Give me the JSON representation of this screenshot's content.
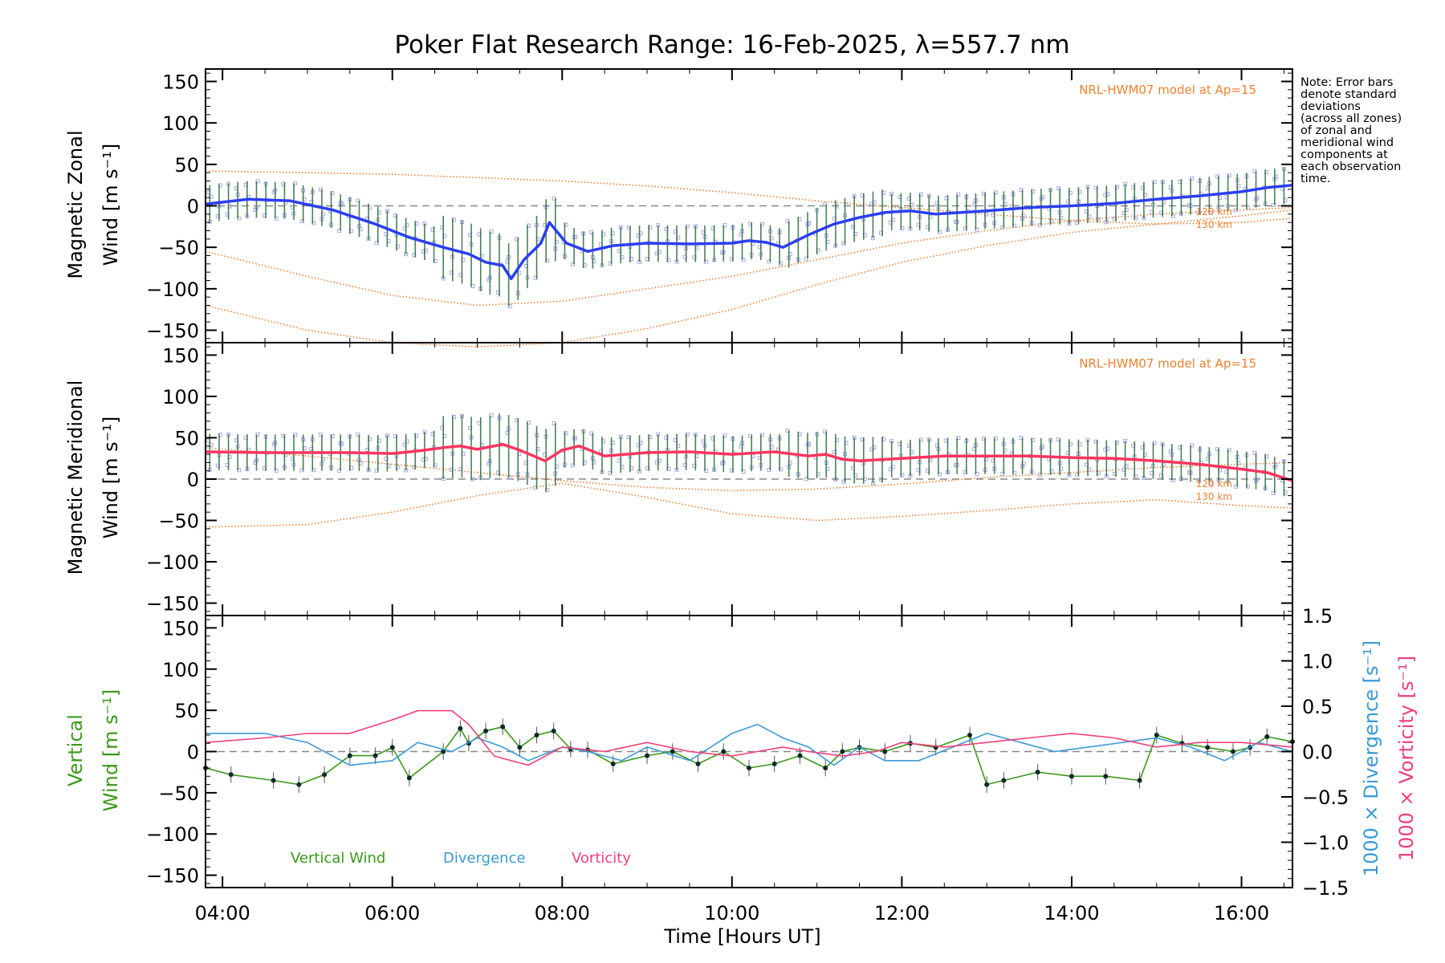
{
  "title": "Poker Flat Research Range: 16-Feb-2025, λ=557.7 nm",
  "note": [
    "Note: Error bars",
    "denote standard",
    "deviations",
    "(across all zones)",
    "of zonal and",
    "meridional wind",
    "components at",
    "each observation",
    "time."
  ],
  "model_label": "NRL-HWM07 model at Ap=15",
  "model_heights": [
    "120 km",
    "130 km"
  ],
  "xlabel": "Time [Hours UT]",
  "xticks": [
    "04:00",
    "06:00",
    "08:00",
    "10:00",
    "12:00",
    "14:00",
    "16:00"
  ],
  "yticks": [
    "150",
    "100",
    "50",
    "0",
    "−50",
    "−100",
    "−150"
  ],
  "right_ticks": [
    "1.5",
    "1.0",
    "0.5",
    "0.0",
    "−0.5",
    "−1.0",
    "−1.5"
  ],
  "panel_labels": {
    "zonal": [
      "Magnetic Zonal",
      "Wind [m s⁻¹]"
    ],
    "meridional": [
      "Magnetic Meridional",
      "Wind [m s⁻¹]"
    ],
    "vertical": [
      "Vertical",
      "Wind [m s⁻¹]"
    ],
    "divergence": "1000 × Divergence [s⁻¹]",
    "vorticity": "1000 × Vorticity [s⁻¹]"
  },
  "legend": [
    "Vertical Wind",
    "Divergence",
    "Vorticity"
  ],
  "colors": {
    "zonal": "#2a3ff0",
    "meridional": "#ff3560",
    "vertical": "#3a9a1a",
    "divergence": "#3a9ad8",
    "vorticity": "#f0407a",
    "model": "#f08030",
    "scatter": "#a8a8e8",
    "errorbar": "#2a6a3a"
  },
  "chart_data": [
    {
      "type": "line",
      "panel": "zonal",
      "xlim": [
        3.8,
        16.6
      ],
      "ylim": [
        -165,
        165
      ],
      "series": [
        {
          "x": [
            3.8,
            4.3,
            4.8,
            5.3,
            5.8,
            6.2,
            6.6,
            6.9,
            7.1,
            7.3,
            7.4,
            7.55,
            7.75,
            7.85,
            8.05,
            8.3,
            8.6,
            9.0,
            9.5,
            10.0,
            10.2,
            10.4,
            10.6,
            10.9,
            11.2,
            11.5,
            11.8,
            12.1,
            12.4,
            13.0,
            13.5,
            14.0,
            14.5,
            15.0,
            15.5,
            16.0,
            16.3,
            16.6
          ],
          "y": [
            2,
            8,
            6,
            -5,
            -22,
            -38,
            -50,
            -58,
            -68,
            -72,
            -88,
            -65,
            -45,
            -20,
            -45,
            -55,
            -48,
            -45,
            -46,
            -45,
            -42,
            -44,
            -50,
            -35,
            -22,
            -14,
            -8,
            -6,
            -10,
            -6,
            -2,
            0,
            3,
            8,
            12,
            17,
            22,
            25
          ]
        }
      ],
      "model": [
        {
          "name": "120 km",
          "x": [
            3.8,
            5.0,
            6.0,
            7.0,
            8.0,
            9.0,
            10.0,
            11.0,
            12.0,
            13.0,
            14.0,
            15.0,
            16.0,
            16.6
          ],
          "y": [
            -55,
            -85,
            -108,
            -120,
            -115,
            -100,
            -85,
            -65,
            -45,
            -30,
            -18,
            -10,
            -5,
            -2
          ]
        },
        {
          "name": "130 km",
          "x": [
            3.8,
            5.0,
            6.0,
            7.0,
            8.0,
            9.0,
            10.0,
            11.0,
            12.0,
            13.0,
            14.0,
            15.0,
            16.0,
            16.6
          ],
          "y": [
            -120,
            -150,
            -165,
            -170,
            -165,
            -148,
            -125,
            -95,
            -68,
            -48,
            -32,
            -22,
            -12,
            -5
          ]
        },
        {
          "name": "",
          "x": [
            3.8,
            5.0,
            6.0,
            7.0,
            8.0,
            9.0,
            10.0,
            11.0,
            12.0,
            13.0,
            14.0,
            15.0,
            16.0,
            16.6
          ],
          "y": [
            42,
            40,
            38,
            34,
            30,
            24,
            16,
            6,
            -2,
            -10,
            -18,
            -22,
            -20,
            -15
          ]
        }
      ]
    },
    {
      "type": "line",
      "panel": "meridional",
      "xlim": [
        3.8,
        16.6
      ],
      "ylim": [
        -165,
        165
      ],
      "series": [
        {
          "x": [
            3.8,
            4.5,
            5.0,
            5.5,
            6.0,
            6.3,
            6.6,
            6.8,
            7.0,
            7.3,
            7.5,
            7.8,
            8.0,
            8.2,
            8.5,
            9.0,
            9.5,
            10.0,
            10.5,
            10.9,
            11.1,
            11.3,
            11.5,
            12.0,
            12.5,
            13.0,
            13.5,
            14.0,
            14.5,
            15.0,
            15.5,
            16.0,
            16.3,
            16.6
          ],
          "y": [
            33,
            32,
            32,
            32,
            31,
            34,
            38,
            40,
            36,
            42,
            35,
            22,
            35,
            40,
            28,
            32,
            33,
            30,
            33,
            28,
            30,
            24,
            22,
            25,
            28,
            28,
            28,
            26,
            25,
            22,
            18,
            12,
            8,
            -2
          ]
        }
      ],
      "model": [
        {
          "name": "120 km",
          "x": [
            3.8,
            5.0,
            6.0,
            7.0,
            8.0,
            9.0,
            10.0,
            11.0,
            12.0,
            13.0,
            14.0,
            15.0,
            16.0,
            16.6
          ],
          "y": [
            38,
            28,
            18,
            8,
            -2,
            -10,
            -14,
            -12,
            -6,
            2,
            8,
            14,
            18,
            20
          ]
        },
        {
          "name": "130 km",
          "x": [
            3.8,
            5.0,
            6.0,
            7.0,
            8.0,
            9.0,
            10.0,
            11.0,
            12.0,
            13.0,
            14.0,
            15.0,
            16.0,
            16.6
          ],
          "y": [
            -58,
            -55,
            -40,
            -20,
            -5,
            -22,
            -42,
            -50,
            -45,
            -38,
            -30,
            -25,
            -32,
            -35
          ]
        }
      ]
    },
    {
      "type": "line",
      "panel": "vertical",
      "xlim": [
        3.8,
        16.6
      ],
      "ylim": [
        -165,
        165
      ],
      "right_ylim": [
        -1.5,
        1.5
      ],
      "series": [
        {
          "name": "Vertical Wind",
          "x": [
            3.8,
            4.1,
            4.6,
            4.9,
            5.2,
            5.5,
            5.8,
            6.0,
            6.2,
            6.6,
            6.8,
            6.9,
            7.1,
            7.3,
            7.5,
            7.7,
            7.9,
            8.1,
            8.3,
            8.6,
            9.0,
            9.3,
            9.6,
            9.9,
            10.2,
            10.5,
            10.8,
            11.1,
            11.3,
            11.5,
            11.8,
            12.1,
            12.4,
            12.8,
            13.0,
            13.2,
            13.6,
            14.0,
            14.4,
            14.8,
            15.0,
            15.3,
            15.6,
            15.9,
            16.1,
            16.3,
            16.6
          ],
          "y": [
            -20,
            -28,
            -35,
            -40,
            -28,
            -5,
            -5,
            5,
            -32,
            0,
            28,
            10,
            25,
            30,
            5,
            20,
            25,
            3,
            2,
            -15,
            -5,
            0,
            -15,
            0,
            -20,
            -15,
            -5,
            -20,
            0,
            5,
            0,
            10,
            5,
            20,
            -40,
            -35,
            -25,
            -30,
            -30,
            -35,
            20,
            10,
            5,
            0,
            5,
            18,
            12
          ]
        },
        {
          "name": "Divergence",
          "axis": "right",
          "x": [
            3.8,
            4.5,
            5.0,
            5.5,
            6.0,
            6.3,
            6.7,
            7.0,
            7.3,
            7.6,
            8.0,
            8.3,
            8.7,
            9.0,
            9.5,
            10.0,
            10.3,
            10.6,
            10.9,
            11.2,
            11.5,
            11.8,
            12.2,
            12.6,
            13.0,
            13.4,
            13.8,
            14.2,
            14.6,
            15.0,
            15.4,
            15.8,
            16.2,
            16.6
          ],
          "y": [
            0.2,
            0.2,
            0.1,
            -0.15,
            -0.1,
            0.1,
            0.0,
            0.15,
            0.05,
            -0.1,
            0.05,
            0.0,
            -0.1,
            0.05,
            -0.1,
            0.2,
            0.3,
            0.15,
            0.05,
            -0.15,
            0.05,
            -0.1,
            -0.1,
            0.05,
            0.2,
            0.1,
            0.0,
            0.05,
            0.1,
            0.15,
            0.05,
            -0.1,
            0.1,
            0.0
          ]
        },
        {
          "name": "Vorticity",
          "axis": "right",
          "x": [
            3.8,
            4.5,
            5.0,
            5.5,
            6.0,
            6.3,
            6.7,
            6.9,
            7.2,
            7.6,
            8.0,
            8.5,
            9.0,
            9.5,
            10.0,
            10.3,
            10.6,
            10.9,
            11.3,
            11.7,
            12.0,
            12.5,
            13.0,
            13.5,
            14.0,
            14.5,
            15.0,
            15.5,
            16.0,
            16.6
          ],
          "y": [
            0.1,
            0.15,
            0.2,
            0.2,
            0.35,
            0.45,
            0.45,
            0.3,
            -0.05,
            -0.15,
            0.05,
            0.0,
            0.1,
            0.0,
            -0.05,
            0.0,
            0.05,
            0.0,
            -0.05,
            0.0,
            0.1,
            0.05,
            0.1,
            0.15,
            0.2,
            0.15,
            0.05,
            0.1,
            0.1,
            0.05
          ]
        }
      ]
    }
  ]
}
